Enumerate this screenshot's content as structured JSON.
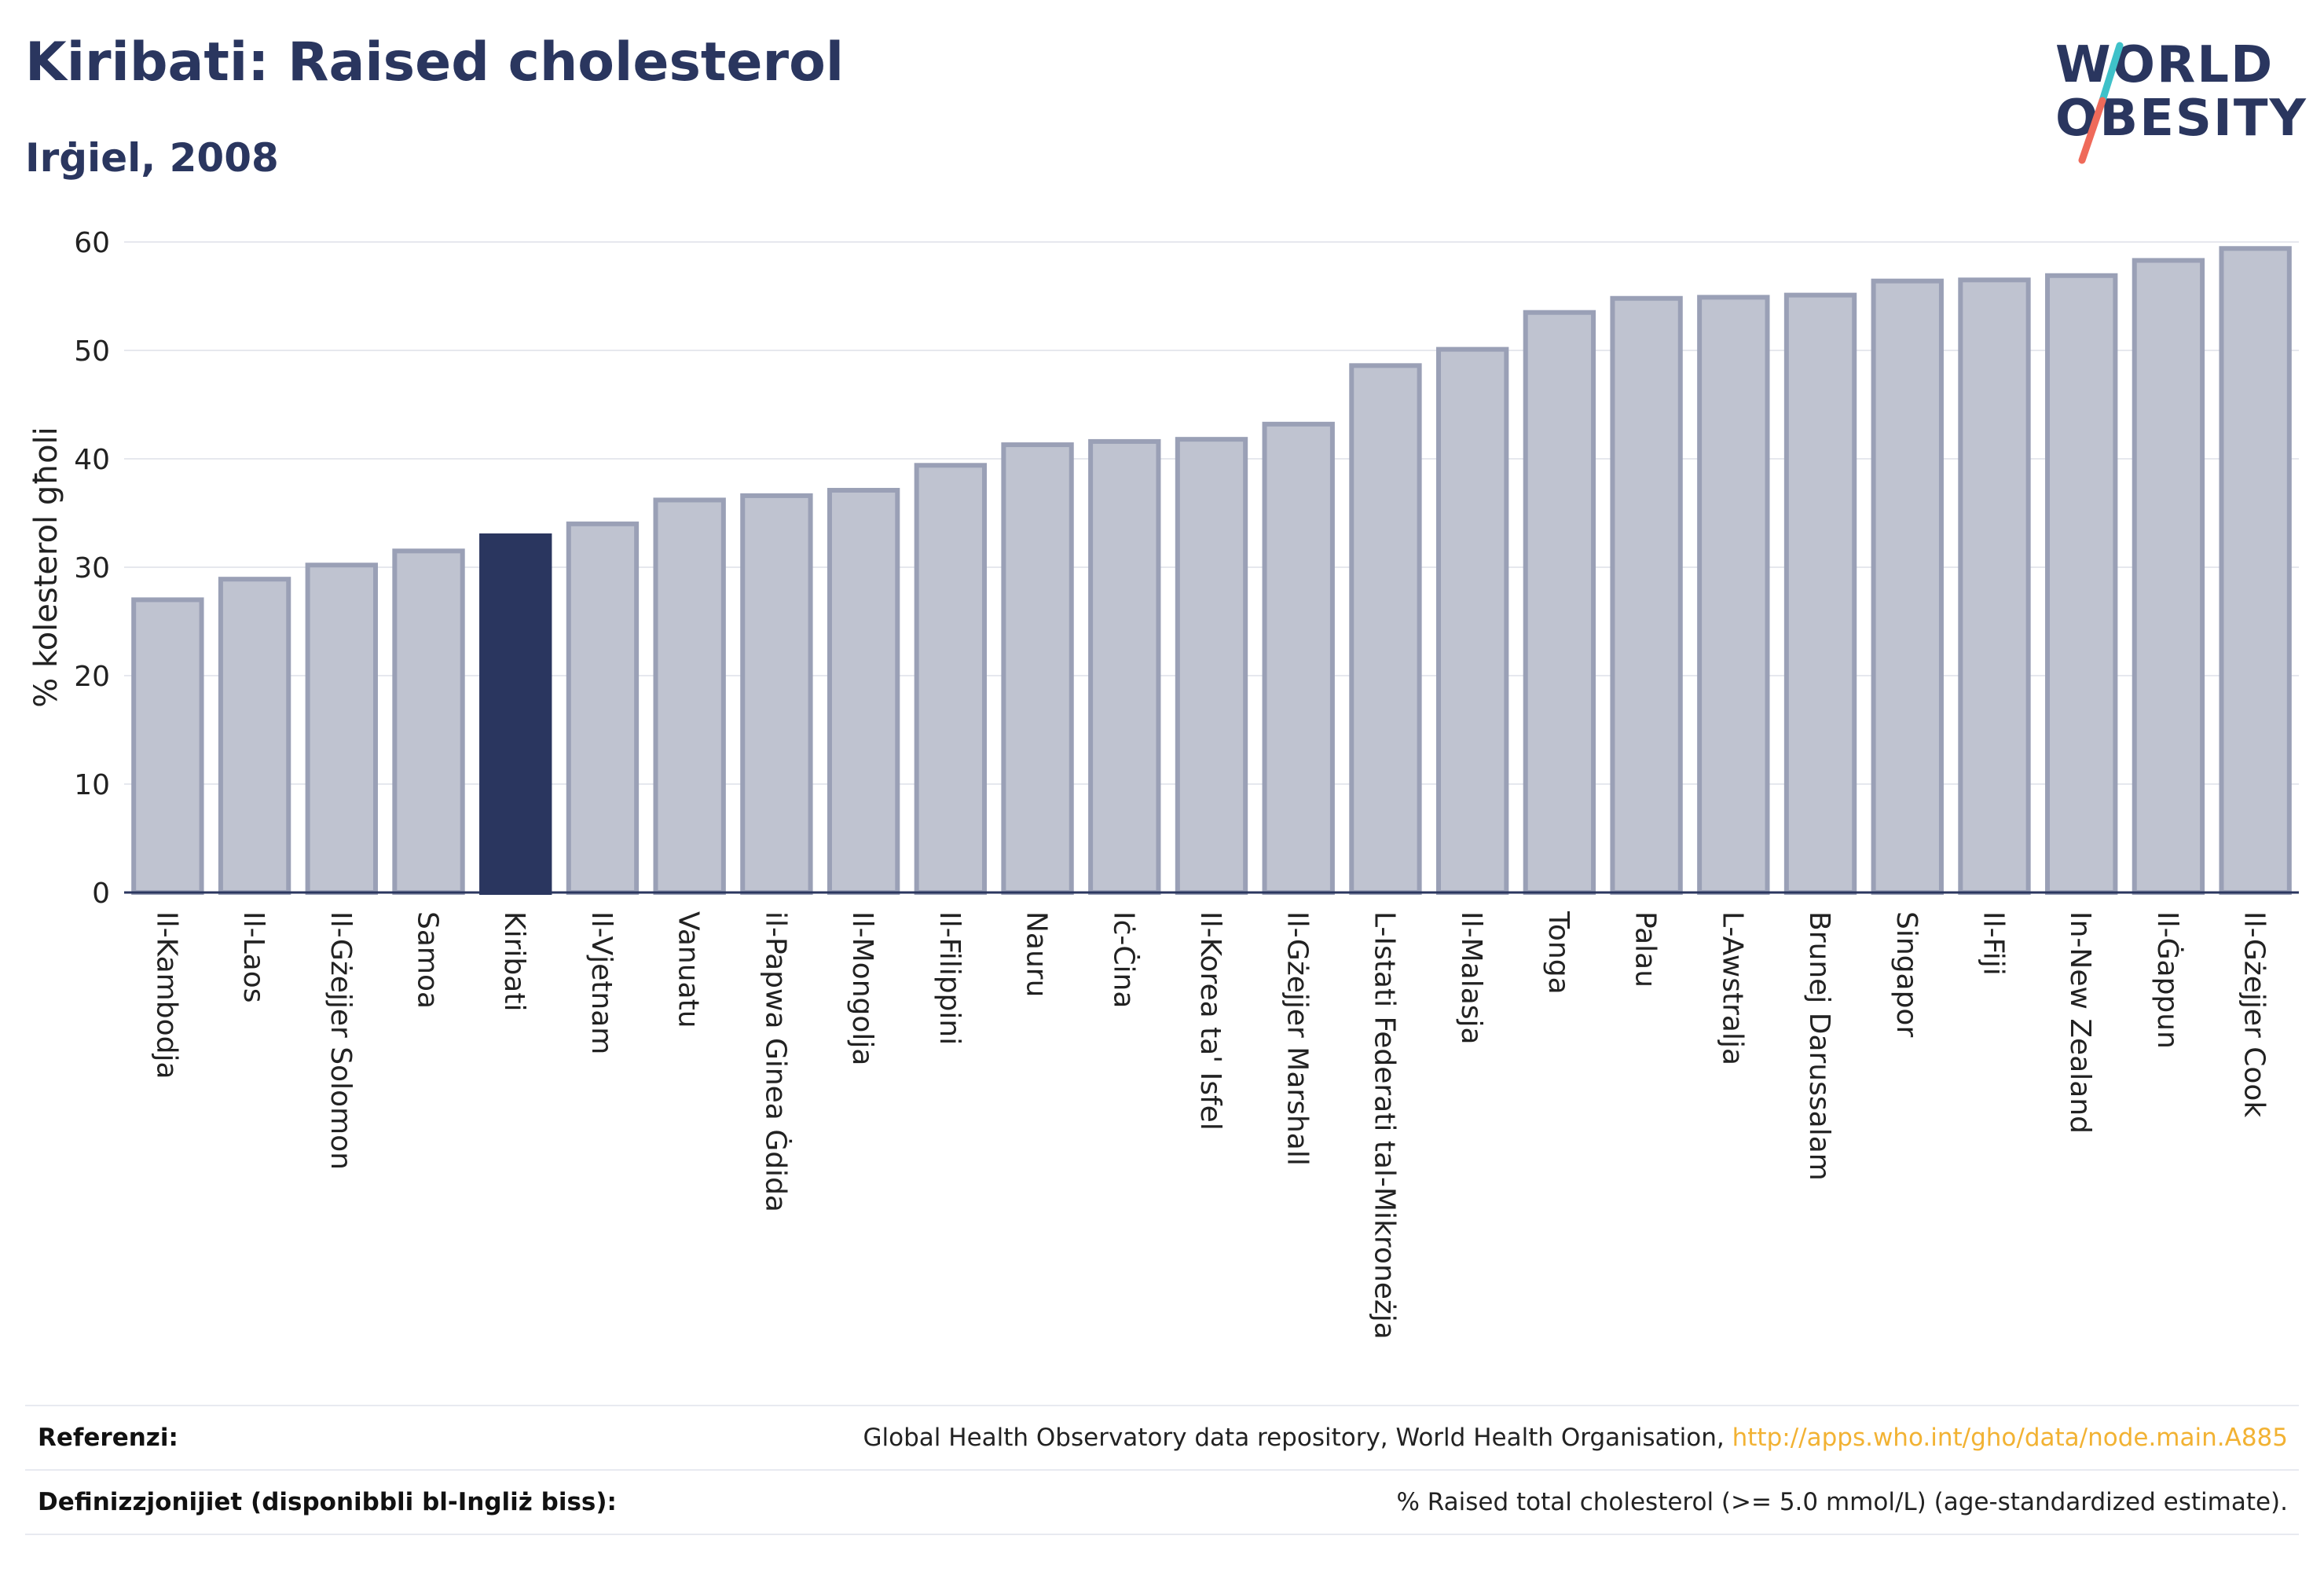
{
  "header": {
    "title": "Kiribati: Raised cholesterol",
    "subtitle": "Irġiel, 2008"
  },
  "logo": {
    "line1": "WORLD",
    "line2": "OBESITY",
    "colors": {
      "text": "#2a365f",
      "slash_top": "#3fc1c9",
      "slash_bottom": "#ef6a5a"
    }
  },
  "chart_data": {
    "type": "bar",
    "title": "",
    "xlabel": "",
    "ylabel": "% kolesterol għoli",
    "ylim": [
      0,
      60
    ],
    "yticks": [
      0,
      10,
      20,
      30,
      40,
      50,
      60
    ],
    "grid": true,
    "highlight": "Kiribati",
    "colors": {
      "bar": "#bfc3d0",
      "bar_border": "#9aa0b6",
      "highlight": "#2a365f",
      "grid": "#e6e8ee",
      "axis": "#2a365f"
    },
    "categories": [
      "Il-Kambodja",
      "Il-Laos",
      "Il-Gżejjer Solomon",
      "Samoa",
      "Kiribati",
      "Il-Vjetnam",
      "Vanuatu",
      "il-Papwa Ginea Ġdida",
      "Il-Mongolja",
      "Il-Filippini",
      "Nauru",
      "Iċ-Ċina",
      "Il-Korea ta' Isfel",
      "Il-Gżejjer Marshall",
      "L-Istati Federati tal-Mikroneżja",
      "Il-Malasja",
      "Tonga",
      "Palau",
      "L-Awstralja",
      "Brunej Darussalam",
      "Singapor",
      "Il-Fiji",
      "In-New Zealand",
      "Il-Ġappun",
      "Il-Gżejjer Cook"
    ],
    "values": [
      27.0,
      28.9,
      30.2,
      31.5,
      32.9,
      34.0,
      36.2,
      36.6,
      37.1,
      39.4,
      41.3,
      41.6,
      41.8,
      43.2,
      48.6,
      50.1,
      53.5,
      54.8,
      54.9,
      55.1,
      56.4,
      56.5,
      56.9,
      58.3,
      59.4
    ]
  },
  "footer": {
    "references_label": "Referenzi:",
    "references_text": "Global Health Observatory data repository, World Health Organisation, ",
    "references_link": "http://apps.who.int/gho/data/node.main.A885",
    "definitions_label": "Definizzjonijiet (disponibbli bl-Ingliż biss):",
    "definitions_text": "% Raised total cholesterol (>= 5.0 mmol/L) (age-standardized estimate)."
  }
}
